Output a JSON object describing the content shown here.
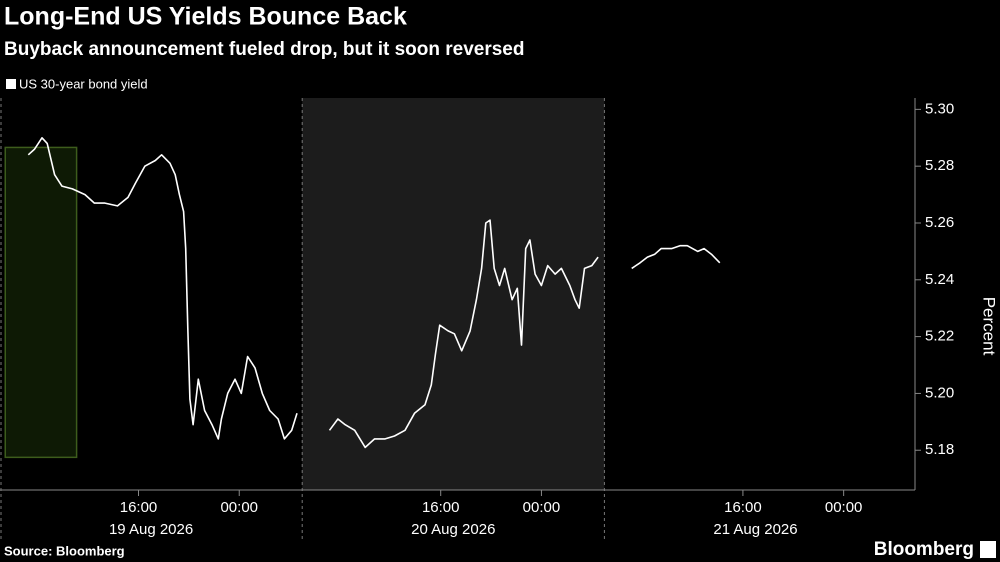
{
  "chart_data": {
    "type": "line",
    "title": "Long-End US Yields Bounce Back",
    "subtitle": "Buyback announcement fueled drop, but it soon reversed",
    "y_axis_label": "Percent",
    "source": "Source: Bloomberg",
    "brand": "Bloomberg",
    "x": [
      "2026-08-19 07:15",
      "2026-08-19 07:45",
      "2026-08-19 08:20",
      "2026-08-19 08:45",
      "2026-08-19 09:20",
      "2026-08-19 09:55",
      "2026-08-19 10:45",
      "2026-08-19 11:45",
      "2026-08-19 12:30",
      "2026-08-19 13:20",
      "2026-08-19 14:20",
      "2026-08-19 15:10",
      "2026-08-19 15:45",
      "2026-08-19 16:30",
      "2026-08-19 17:20",
      "2026-08-19 17:50",
      "2026-08-19 18:30",
      "2026-08-19 18:55",
      "2026-08-19 19:15",
      "2026-08-19 19:35",
      "2026-08-19 19:45",
      "2026-08-19 19:55",
      "2026-08-19 20:05",
      "2026-08-19 20:20",
      "2026-08-19 20:45",
      "2026-08-19 21:15",
      "2026-08-19 21:50",
      "2026-08-19 22:20",
      "2026-08-19 22:35",
      "2026-08-19 23:05",
      "2026-08-19 23:40",
      "2026-08-20 00:10",
      "2026-08-20 00:40",
      "2026-08-20 01:15",
      "2026-08-20 01:50",
      "2026-08-20 02:25",
      "2026-08-20 03:05",
      "2026-08-20 03:35",
      "2026-08-20 04:10",
      "2026-08-20 04:35",
      "2026-08-20 05:00",
      "2026-08-20 07:10",
      "2026-08-20 07:50",
      "2026-08-20 08:25",
      "2026-08-20 09:10",
      "2026-08-20 10:00",
      "2026-08-20 10:45",
      "2026-08-20 11:35",
      "2026-08-20 12:20",
      "2026-08-20 13:10",
      "2026-08-20 13:55",
      "2026-08-20 14:45",
      "2026-08-20 15:15",
      "2026-08-20 15:35",
      "2026-08-20 15:55",
      "2026-08-20 16:35",
      "2026-08-20 17:05",
      "2026-08-20 17:40",
      "2026-08-20 18:20",
      "2026-08-20 18:50",
      "2026-08-20 19:15",
      "2026-08-20 19:35",
      "2026-08-20 19:55",
      "2026-08-20 20:15",
      "2026-08-20 20:40",
      "2026-08-20 21:05",
      "2026-08-20 21:40",
      "2026-08-20 22:05",
      "2026-08-20 22:25",
      "2026-08-20 22:45",
      "2026-08-20 23:05",
      "2026-08-20 23:30",
      "2026-08-21 00:00",
      "2026-08-21 00:30",
      "2026-08-21 01:05",
      "2026-08-21 01:35",
      "2026-08-21 02:15",
      "2026-08-21 02:40",
      "2026-08-21 03:00",
      "2026-08-21 03:25",
      "2026-08-21 04:00",
      "2026-08-21 04:30",
      "2026-08-21 05:00",
      "2026-08-21 07:10",
      "2026-08-21 07:50",
      "2026-08-21 08:25",
      "2026-08-21 09:00",
      "2026-08-21 09:30",
      "2026-08-21 10:20",
      "2026-08-21 11:00",
      "2026-08-21 11:35",
      "2026-08-21 12:25",
      "2026-08-21 12:55",
      "2026-08-21 13:30",
      "2026-08-21 14:10"
    ],
    "series": [
      {
        "name": "US 30-year bond yield",
        "color": "#ffffff",
        "values": [
          5.284,
          5.286,
          5.29,
          5.288,
          5.277,
          5.273,
          5.272,
          5.27,
          5.267,
          5.267,
          5.266,
          5.269,
          5.274,
          5.28,
          5.282,
          5.284,
          5.281,
          5.277,
          5.27,
          5.264,
          5.251,
          5.223,
          5.198,
          5.189,
          5.205,
          5.194,
          5.189,
          5.184,
          5.191,
          5.2,
          5.205,
          5.2,
          5.213,
          5.209,
          5.2,
          5.194,
          5.191,
          5.184,
          5.187,
          5.193,
          null,
          5.187,
          5.191,
          5.189,
          5.187,
          5.181,
          5.184,
          5.184,
          5.185,
          5.187,
          5.193,
          5.196,
          5.203,
          5.214,
          5.224,
          5.222,
          5.221,
          5.215,
          5.222,
          5.233,
          5.244,
          5.26,
          5.261,
          5.244,
          5.238,
          5.244,
          5.233,
          5.237,
          5.217,
          5.251,
          5.254,
          5.242,
          5.238,
          5.245,
          5.242,
          5.244,
          5.238,
          5.233,
          5.23,
          5.244,
          5.245,
          5.248,
          null,
          5.244,
          5.246,
          5.248,
          5.249,
          5.251,
          5.251,
          5.252,
          5.252,
          5.25,
          5.251,
          5.249,
          5.246
        ]
      }
    ],
    "xlim": [
      "2026-08-19 05:00",
      "2026-08-22 05:40"
    ],
    "xticks": [
      {
        "value": "2026-08-19 16:00",
        "label": "16:00"
      },
      {
        "value": "2026-08-20 00:00",
        "label": "00:00"
      },
      {
        "value": "2026-08-20 16:00",
        "label": "16:00"
      },
      {
        "value": "2026-08-21 00:00",
        "label": "00:00"
      },
      {
        "value": "2026-08-21 16:00",
        "label": "16:00"
      },
      {
        "value": "2026-08-22 00:00",
        "label": "00:00"
      }
    ],
    "day_labels": [
      {
        "value": "2026-08-19 17:00",
        "label": "19 Aug 2026"
      },
      {
        "value": "2026-08-20 17:00",
        "label": "20 Aug 2026"
      },
      {
        "value": "2026-08-21 17:00",
        "label": "21 Aug 2026"
      }
    ],
    "day_separators": [
      "2026-08-20 05:00",
      "2026-08-21 05:00"
    ],
    "shaded_range": [
      "2026-08-20 05:00",
      "2026-08-21 05:00"
    ],
    "highlight_box": {
      "x": [
        "2026-08-19 05:25",
        "2026-08-19 11:05"
      ],
      "y": [
        5.1775,
        5.2866
      ],
      "color": "#3d5c1c"
    },
    "ylim": [
      5.166,
      5.304
    ],
    "yticks": [
      5.18,
      {
        "value": 5.2,
        "label": "5.20"
      },
      5.22,
      5.24,
      5.26,
      5.28,
      {
        "value": 5.3,
        "label": "5.30"
      }
    ],
    "y_axis_side": "right",
    "legend": "top-left"
  }
}
